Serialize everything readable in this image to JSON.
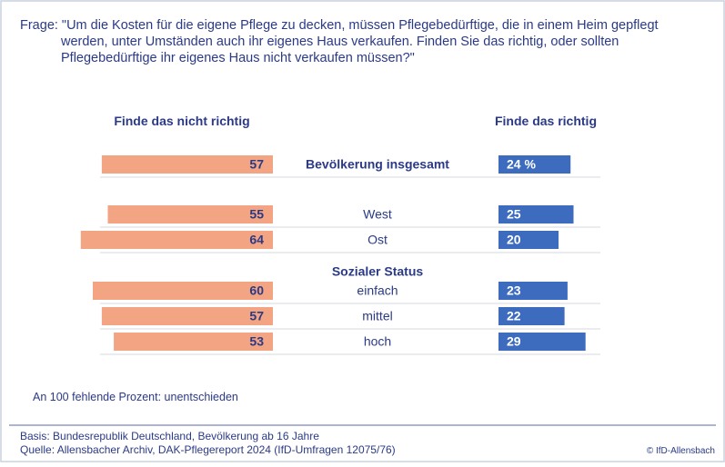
{
  "chart_data": {
    "type": "diverging_bar",
    "title": "Frage: \"Um die Kosten für die eigene Pflege zu decken, müssen Pflegebedürftige, die in einem Heim gepflegt werden, unter Umständen auch ihr eigenes Haus verkaufen. Finden Sie das richtig, oder sollten Pflegebedürftige ihr eigenes Haus nicht verkaufen müssen?\"",
    "categories": [
      "Bevölkerung insgesamt",
      "West",
      "Ost",
      "einfach",
      "mittel",
      "hoch"
    ],
    "category_group": "Sozialer Status",
    "series": [
      {
        "name": "Finde das nicht richtig",
        "color": "#f2a483",
        "values": [
          57,
          55,
          64,
          60,
          57,
          53
        ]
      },
      {
        "name": "Finde das richtig",
        "color": "#3d6cbf",
        "values": [
          24,
          25,
          20,
          23,
          22,
          29
        ],
        "value_labels": [
          "24 %",
          "25",
          "20",
          "23",
          "22",
          "29"
        ]
      }
    ],
    "note": "An 100 fehlende Prozent: unentschieden",
    "basis": "Basis: Bundesrepublik Deutschland, Bevölkerung ab 16 Jahre",
    "source": "Quelle: Allensbacher Archiv, DAK-Pflegereport 2024 (IfD-Umfragen 12075/76)",
    "copyright": "© IfD-Allensbach"
  }
}
